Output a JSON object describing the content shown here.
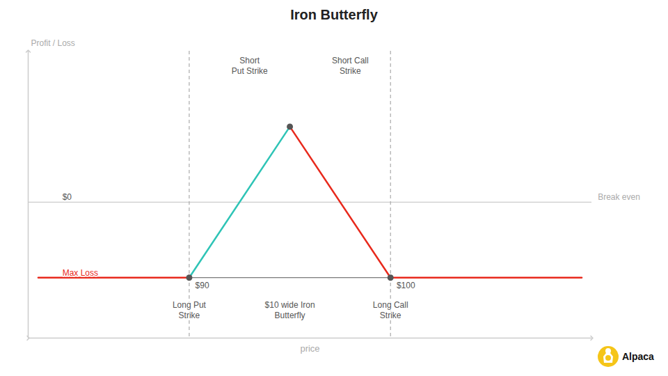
{
  "chart_data": {
    "type": "line",
    "title": "Iron Butterfly",
    "xlabel": "price",
    "ylabel": "Profit / Loss",
    "x": [
      82.5,
      90,
      95,
      100,
      109.5
    ],
    "values": [
      -5,
      -5,
      5,
      -5,
      -5
    ],
    "colors": [
      "#e8291c",
      "#2ec4b6",
      "#e8291c",
      "#e8291c"
    ],
    "points": {
      "x": [
        90,
        95,
        100
      ],
      "values": [
        -5,
        5,
        -5
      ],
      "color": "#555555"
    },
    "breakeven": {
      "value": 0,
      "color": "#cccccc"
    },
    "strike_lines": {
      "x": [
        90,
        100
      ],
      "color": "#aaaaaa",
      "line_style": "dashed"
    },
    "width_arrow": {
      "x": [
        90,
        100
      ],
      "value": -5,
      "color": "#555555"
    },
    "axis_color": "#cccccc",
    "label_color": "#aaaaaa",
    "annotations": [
      {
        "text": "$0",
        "x": 83.7,
        "y": 0.15,
        "color": "#555555"
      },
      {
        "text": "Break even",
        "x": 110.3,
        "y": 0.15,
        "color": "#aaaaaa"
      },
      {
        "text": "Max Loss",
        "x": 83.7,
        "y": -4.85,
        "color": "#e8291c"
      },
      {
        "text": "$90",
        "x": 90.3,
        "y": -5.3,
        "color": "#555555"
      },
      {
        "text": "$100",
        "x": 100.3,
        "y": -5.3,
        "color": "#555555"
      },
      {
        "text": "Short\nPut Strike",
        "x": 93,
        "y": 9.7,
        "color": "#555555"
      },
      {
        "text": "Short Call\nStrike",
        "x": 98,
        "y": 9.7,
        "color": "#555555"
      },
      {
        "text": "Long Put\nStrike",
        "x": 90,
        "y": -6.5,
        "color": "#555555"
      },
      {
        "text": "Long Call\nStrike",
        "x": 100,
        "y": -6.5,
        "color": "#555555"
      },
      {
        "text": "$10 wide Iron\nButterfly",
        "x": 95,
        "y": -6.5,
        "color": "#555555"
      }
    ],
    "logo": {
      "text": "Alpaca",
      "color": "#f5c518"
    },
    "xlim": [
      82,
      110
    ],
    "ylim": [
      -9,
      10
    ],
    "tick_labels": false,
    "grid": false
  }
}
